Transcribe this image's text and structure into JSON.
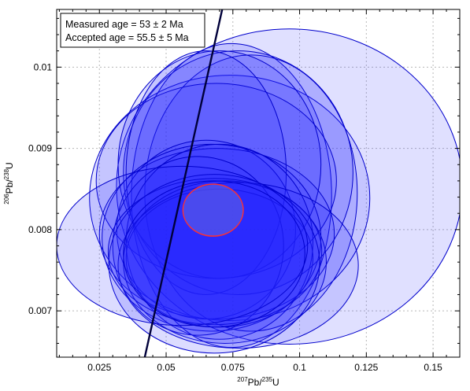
{
  "chart_data": {
    "type": "scatter",
    "title": "",
    "xlabel": {
      "pre_sup": "207",
      "base": "Pb/",
      "post_sup": "235",
      "tail": "U"
    },
    "ylabel": {
      "pre_sup": "206",
      "base": "Pb/",
      "post_sup": "238",
      "tail": "U"
    },
    "xlim": [
      0.009,
      0.16
    ],
    "ylim": [
      0.00643,
      0.01071
    ],
    "xticks": [
      0.025,
      0.05,
      0.075,
      0.1,
      0.125,
      0.15
    ],
    "xtick_labels": [
      "0.025",
      "0.05",
      "0.075",
      "0.1",
      "0.125",
      "0.15"
    ],
    "yticks": [
      0.007,
      0.008,
      0.009,
      0.01
    ],
    "ytick_labels": [
      "0.007",
      "0.008",
      "0.009",
      "0.01"
    ],
    "grid": true,
    "legend": {
      "placement": "top-left",
      "lines": [
        "Measured age = 53 ± 2 Ma",
        "Accepted age = 55.5 ± 5 Ma"
      ]
    },
    "concordia": {
      "points": [
        [
          0.042,
          0.00643
        ],
        [
          0.071,
          0.01071
        ]
      ],
      "color": "#00003a"
    },
    "ellipses": [
      {
        "cx": 0.0962,
        "cy": 0.00853,
        "rx": 0.0648,
        "ry": 0.00194,
        "opacity": 0.14
      },
      {
        "cx": 0.0738,
        "cy": 0.00839,
        "rx": 0.0525,
        "ry": 0.00151,
        "opacity": 0.14
      },
      {
        "cx": 0.0745,
        "cy": 0.00842,
        "rx": 0.0375,
        "ry": 0.00187,
        "opacity": 0.16
      },
      {
        "cx": 0.0818,
        "cy": 0.00845,
        "rx": 0.0398,
        "ry": 0.0017,
        "opacity": 0.14
      },
      {
        "cx": 0.077,
        "cy": 0.0087,
        "rx": 0.043,
        "ry": 0.0015,
        "opacity": 0.14
      },
      {
        "cx": 0.0688,
        "cy": 0.0086,
        "rx": 0.045,
        "ry": 0.0012,
        "opacity": 0.14
      },
      {
        "cx": 0.07,
        "cy": 0.0088,
        "rx": 0.038,
        "ry": 0.0014,
        "opacity": 0.14
      },
      {
        "cx": 0.065,
        "cy": 0.0087,
        "rx": 0.03,
        "ry": 0.0015,
        "opacity": 0.14
      },
      {
        "cx": 0.065,
        "cy": 0.008,
        "rx": 0.0335,
        "ry": 0.0011,
        "opacity": 0.14
      },
      {
        "cx": 0.069,
        "cy": 0.00795,
        "rx": 0.044,
        "ry": 0.00105,
        "opacity": 0.14
      },
      {
        "cx": 0.067,
        "cy": 0.0079,
        "rx": 0.041,
        "ry": 0.00115,
        "opacity": 0.14
      },
      {
        "cx": 0.07,
        "cy": 0.00785,
        "rx": 0.035,
        "ry": 0.0012,
        "opacity": 0.14
      },
      {
        "cx": 0.062,
        "cy": 0.0078,
        "rx": 0.032,
        "ry": 0.0011,
        "opacity": 0.14
      },
      {
        "cx": 0.07,
        "cy": 0.00765,
        "rx": 0.035,
        "ry": 0.00085,
        "opacity": 0.14
      },
      {
        "cx": 0.0683,
        "cy": 0.00773,
        "rx": 0.04,
        "ry": 0.0009,
        "opacity": 0.14
      },
      {
        "cx": 0.072,
        "cy": 0.0076,
        "rx": 0.038,
        "ry": 0.001,
        "opacity": 0.14
      },
      {
        "cx": 0.077,
        "cy": 0.00756,
        "rx": 0.045,
        "ry": 0.00102,
        "opacity": 0.14
      },
      {
        "cx": 0.068,
        "cy": 0.00758,
        "rx": 0.0395,
        "ry": 0.0011,
        "opacity": 0.16
      },
      {
        "cx": 0.056,
        "cy": 0.0078,
        "rx": 0.047,
        "ry": 0.00098,
        "opacity": 0.16
      },
      {
        "cx": 0.068,
        "cy": 0.0077,
        "rx": 0.034,
        "ry": 0.0009,
        "opacity": 0.14
      }
    ],
    "ellipse_fill": "#2323ff",
    "ellipse_stroke": "#0000cc",
    "mean_ellipse": {
      "cx": 0.0676,
      "cy": 0.00824,
      "rx": 0.0113,
      "ry": 0.00032,
      "fill": "#6464e0",
      "stroke": "#ff3030"
    }
  }
}
